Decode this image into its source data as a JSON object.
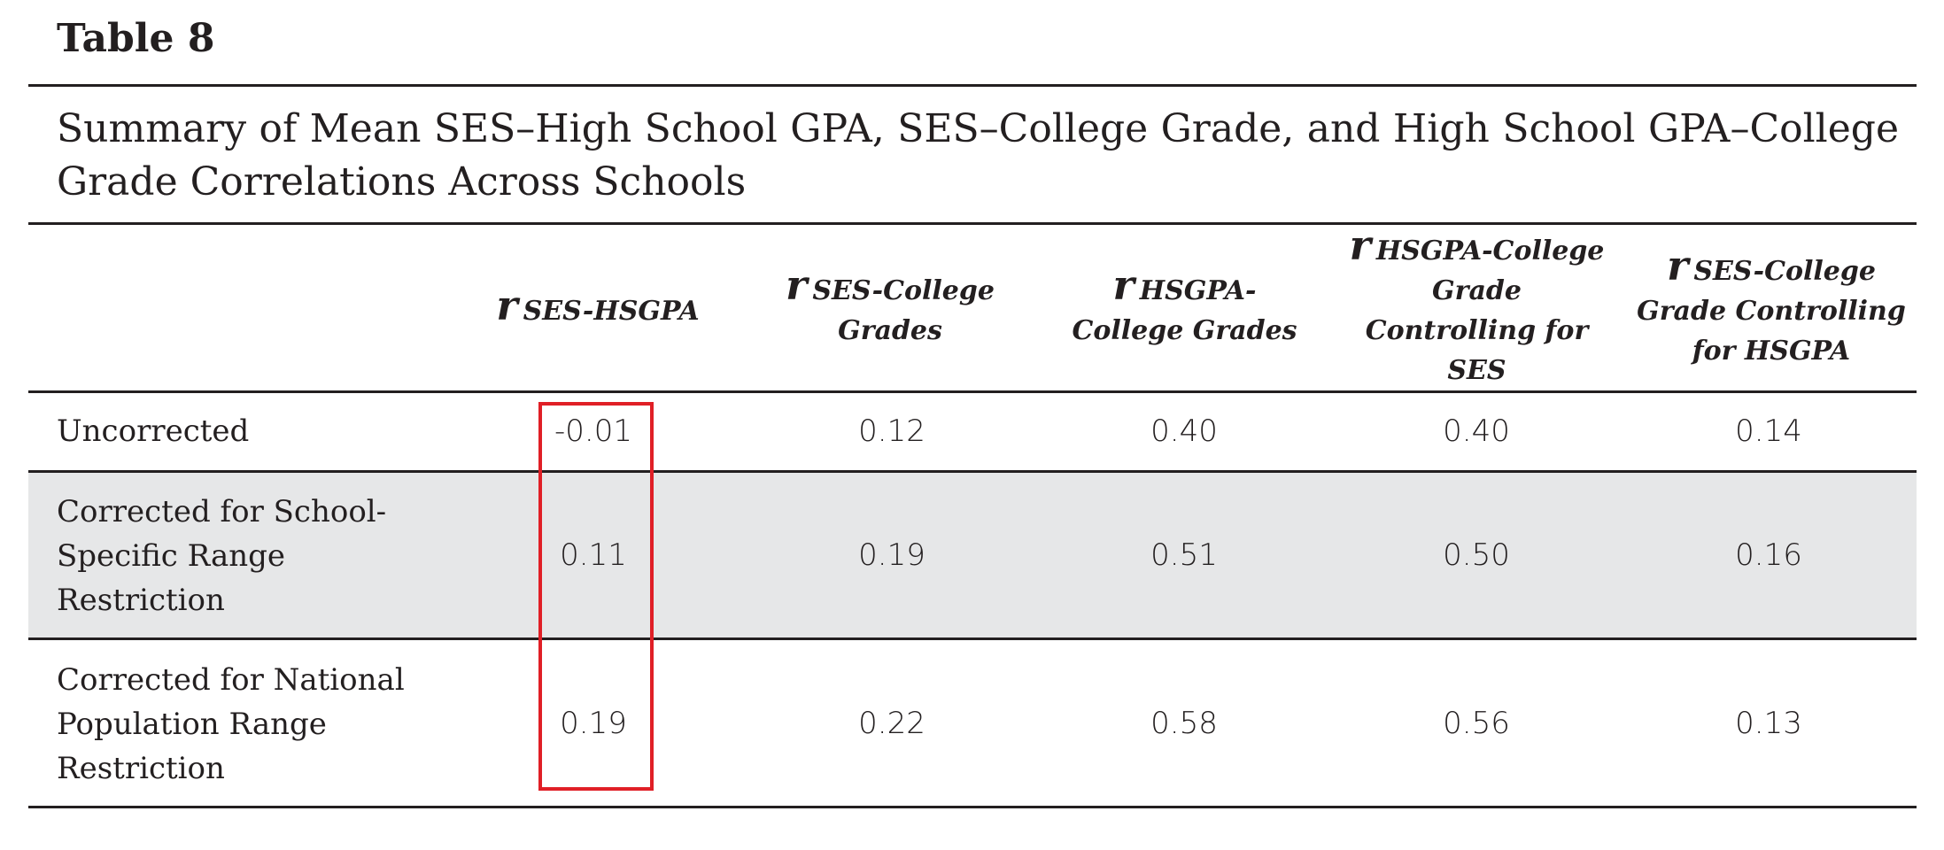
{
  "table_label": "Table 8",
  "caption": "Summary of Mean SES–High School GPA, SES–College Grade, and High School GPA–College Grade Correlations Across Schools",
  "columns": [
    {
      "symbol": "r",
      "subscript": "SES-HSGPA"
    },
    {
      "symbol": "r",
      "subscript": "SES-College Grades"
    },
    {
      "symbol": "r",
      "subscript": "HSGPA- College Grades"
    },
    {
      "symbol": "r",
      "subscript": "HSGPA-College Grade Controlling for SES"
    },
    {
      "symbol": "r",
      "subscript": "SES-College Grade Controlling for HSGPA"
    }
  ],
  "rows": [
    {
      "label": "Uncorrected",
      "values": [
        "-0.01",
        "0.12",
        "0.40",
        "0.40",
        "0.14"
      ]
    },
    {
      "label": "Corrected for School-\nSpecific Range\nRestriction",
      "values": [
        "0.11",
        "0.19",
        "0.51",
        "0.50",
        "0.16"
      ]
    },
    {
      "label": "Corrected for National\nPopulation Range\nRestriction",
      "values": [
        "0.19",
        "0.22",
        "0.58",
        "0.56",
        "0.13"
      ]
    }
  ],
  "highlight_color": "#e01f26",
  "shade_color": "#e6e7e8"
}
